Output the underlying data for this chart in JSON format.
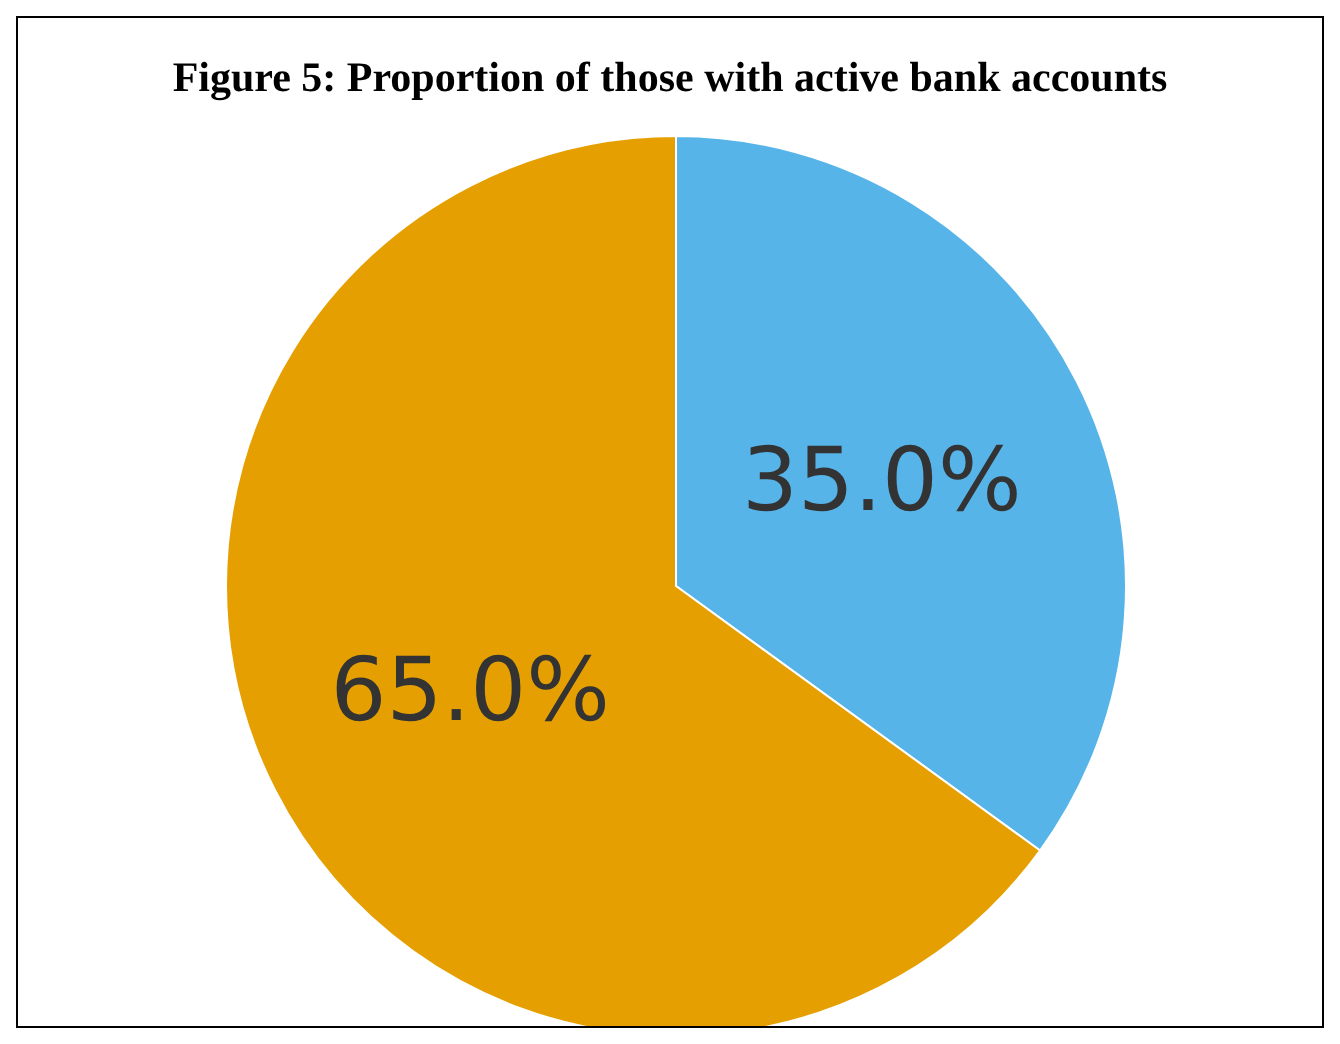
{
  "chart_data": {
    "type": "pie",
    "title": "Figure 5: Proportion of those with active bank accounts",
    "categories": [
      null,
      null
    ],
    "values": [
      35,
      65
    ],
    "colors": [
      "#56b4e9",
      "#e69f00"
    ],
    "value_labels": [
      "35.0%",
      "65.0%"
    ]
  }
}
